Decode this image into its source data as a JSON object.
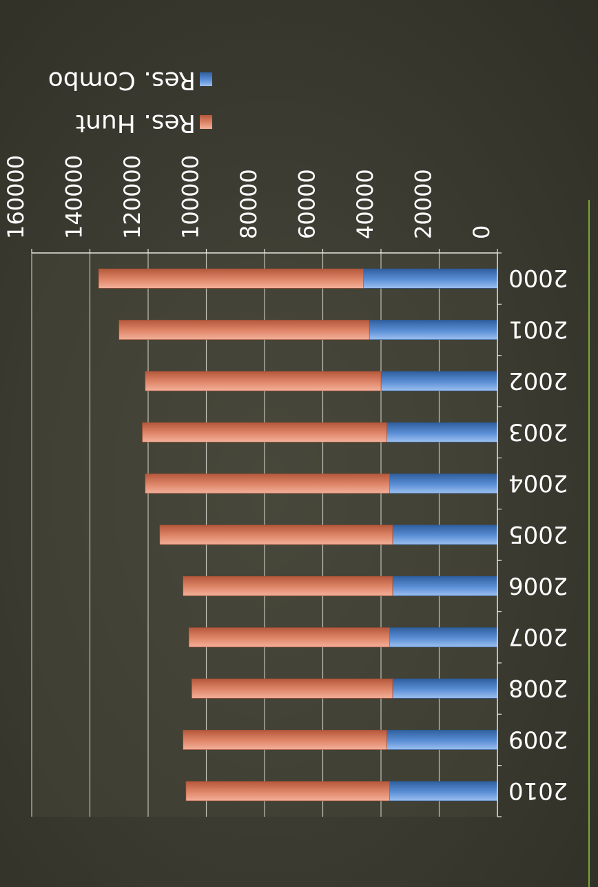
{
  "chart_data": {
    "type": "bar",
    "orientation": "horizontal-stacked",
    "categories": [
      "2000",
      "2001",
      "2002",
      "2003",
      "2004",
      "2005",
      "2006",
      "2007",
      "2008",
      "2009",
      "2010"
    ],
    "series": [
      {
        "name": "Res. Combo",
        "color": "#5b8fd6",
        "values": [
          46000,
          44000,
          40000,
          38000,
          37000,
          36000,
          36000,
          37000,
          36000,
          38000,
          37000
        ]
      },
      {
        "name": "Res. Hunt",
        "color": "#e0876a",
        "values": [
          91000,
          86000,
          81000,
          84000,
          84000,
          80000,
          72000,
          69000,
          69000,
          70000,
          70000
        ]
      }
    ],
    "value_axis": {
      "min": 0,
      "max": 160000,
      "ticks": [
        "0",
        "20000",
        "40000",
        "60000",
        "80000",
        "100000",
        "120000",
        "140000",
        "160000"
      ]
    },
    "grid": true,
    "legend_position": "right",
    "image_rotation": "180"
  },
  "colors": {
    "background": "#3c3c32",
    "grid": "#d8d8d0",
    "text": "#ffffff",
    "accent_line": "#7aa832"
  }
}
